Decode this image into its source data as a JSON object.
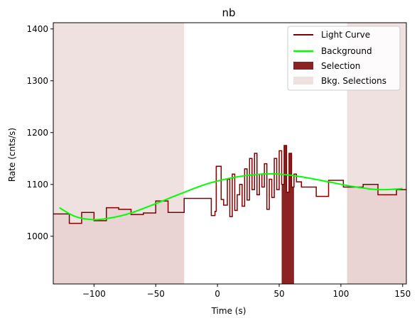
{
  "chart_data": {
    "type": "line",
    "title": "nb",
    "xlabel": "Time (s)",
    "ylabel": "Rate (cnts/s)",
    "xlim": [
      -133,
      153
    ],
    "ylim": [
      908,
      1412
    ],
    "xticks": [
      -100,
      -50,
      0,
      50,
      100,
      150
    ],
    "yticks": [
      1000,
      1100,
      1200,
      1300,
      1400
    ],
    "xtick_labels": [
      "−100",
      "−50",
      "0",
      "50",
      "100",
      "150"
    ],
    "ytick_labels": [
      "1000",
      "1100",
      "1200",
      "1300",
      "1400"
    ],
    "grid": false,
    "legend_position": "top-right",
    "colors": {
      "light_curve": "#800000",
      "background": "#00ff00",
      "selection": "#8b2323",
      "bkg_selection": "#f0e1e1"
    },
    "series": [
      {
        "name": "Light Curve",
        "kind": "step",
        "points": [
          [
            -133,
            1043
          ],
          [
            -120,
            1025
          ],
          [
            -110,
            1046
          ],
          [
            -100,
            1030
          ],
          [
            -90,
            1055
          ],
          [
            -80,
            1052
          ],
          [
            -70,
            1042
          ],
          [
            -60,
            1045
          ],
          [
            -50,
            1068
          ],
          [
            -40,
            1046
          ],
          [
            -27,
            1073
          ],
          [
            -5,
            1040
          ],
          [
            -2,
            1048
          ],
          [
            -1,
            1135
          ],
          [
            3,
            1071
          ],
          [
            5,
            1060
          ],
          [
            8,
            1110
          ],
          [
            10,
            1038
          ],
          [
            12,
            1120
          ],
          [
            14,
            1050
          ],
          [
            16,
            1080
          ],
          [
            18,
            1100
          ],
          [
            20,
            1058
          ],
          [
            22,
            1130
          ],
          [
            24,
            1070
          ],
          [
            26,
            1150
          ],
          [
            28,
            1090
          ],
          [
            30,
            1160
          ],
          [
            32,
            1080
          ],
          [
            34,
            1120
          ],
          [
            36,
            1095
          ],
          [
            38,
            1140
          ],
          [
            40,
            1052
          ],
          [
            42,
            1110
          ],
          [
            44,
            1075
          ],
          [
            46,
            1150
          ],
          [
            48,
            1090
          ],
          [
            50,
            1165
          ],
          [
            52,
            1100
          ],
          [
            54,
            1175
          ],
          [
            56,
            1085
          ],
          [
            58,
            1160
          ],
          [
            60,
            1095
          ],
          [
            62,
            1120
          ],
          [
            64,
            1105
          ],
          [
            68,
            1095
          ],
          [
            80,
            1077
          ],
          [
            90,
            1108
          ],
          [
            102,
            1095
          ],
          [
            118,
            1100
          ],
          [
            130,
            1080
          ],
          [
            145,
            1090
          ],
          [
            153,
            1090
          ]
        ]
      },
      {
        "name": "Background",
        "kind": "curve",
        "points": [
          [
            -128,
            1055
          ],
          [
            -115,
            1038
          ],
          [
            -100,
            1032
          ],
          [
            -85,
            1036
          ],
          [
            -70,
            1045
          ],
          [
            -50,
            1063
          ],
          [
            -30,
            1082
          ],
          [
            -10,
            1100
          ],
          [
            10,
            1112
          ],
          [
            30,
            1119
          ],
          [
            50,
            1120
          ],
          [
            70,
            1114
          ],
          [
            90,
            1105
          ],
          [
            110,
            1096
          ],
          [
            130,
            1090
          ],
          [
            150,
            1092
          ]
        ]
      }
    ],
    "selections": [
      {
        "name": "Selection",
        "x": [
          52,
          62
        ]
      }
    ],
    "bkg_selections": [
      {
        "name": "Bkg. Selections",
        "x": [
          -133,
          -27
        ]
      },
      {
        "name": "Bkg. Selections",
        "x": [
          105,
          153
        ]
      }
    ],
    "legend": [
      "Light Curve",
      "Background",
      "Selection",
      "Bkg. Selections"
    ]
  }
}
